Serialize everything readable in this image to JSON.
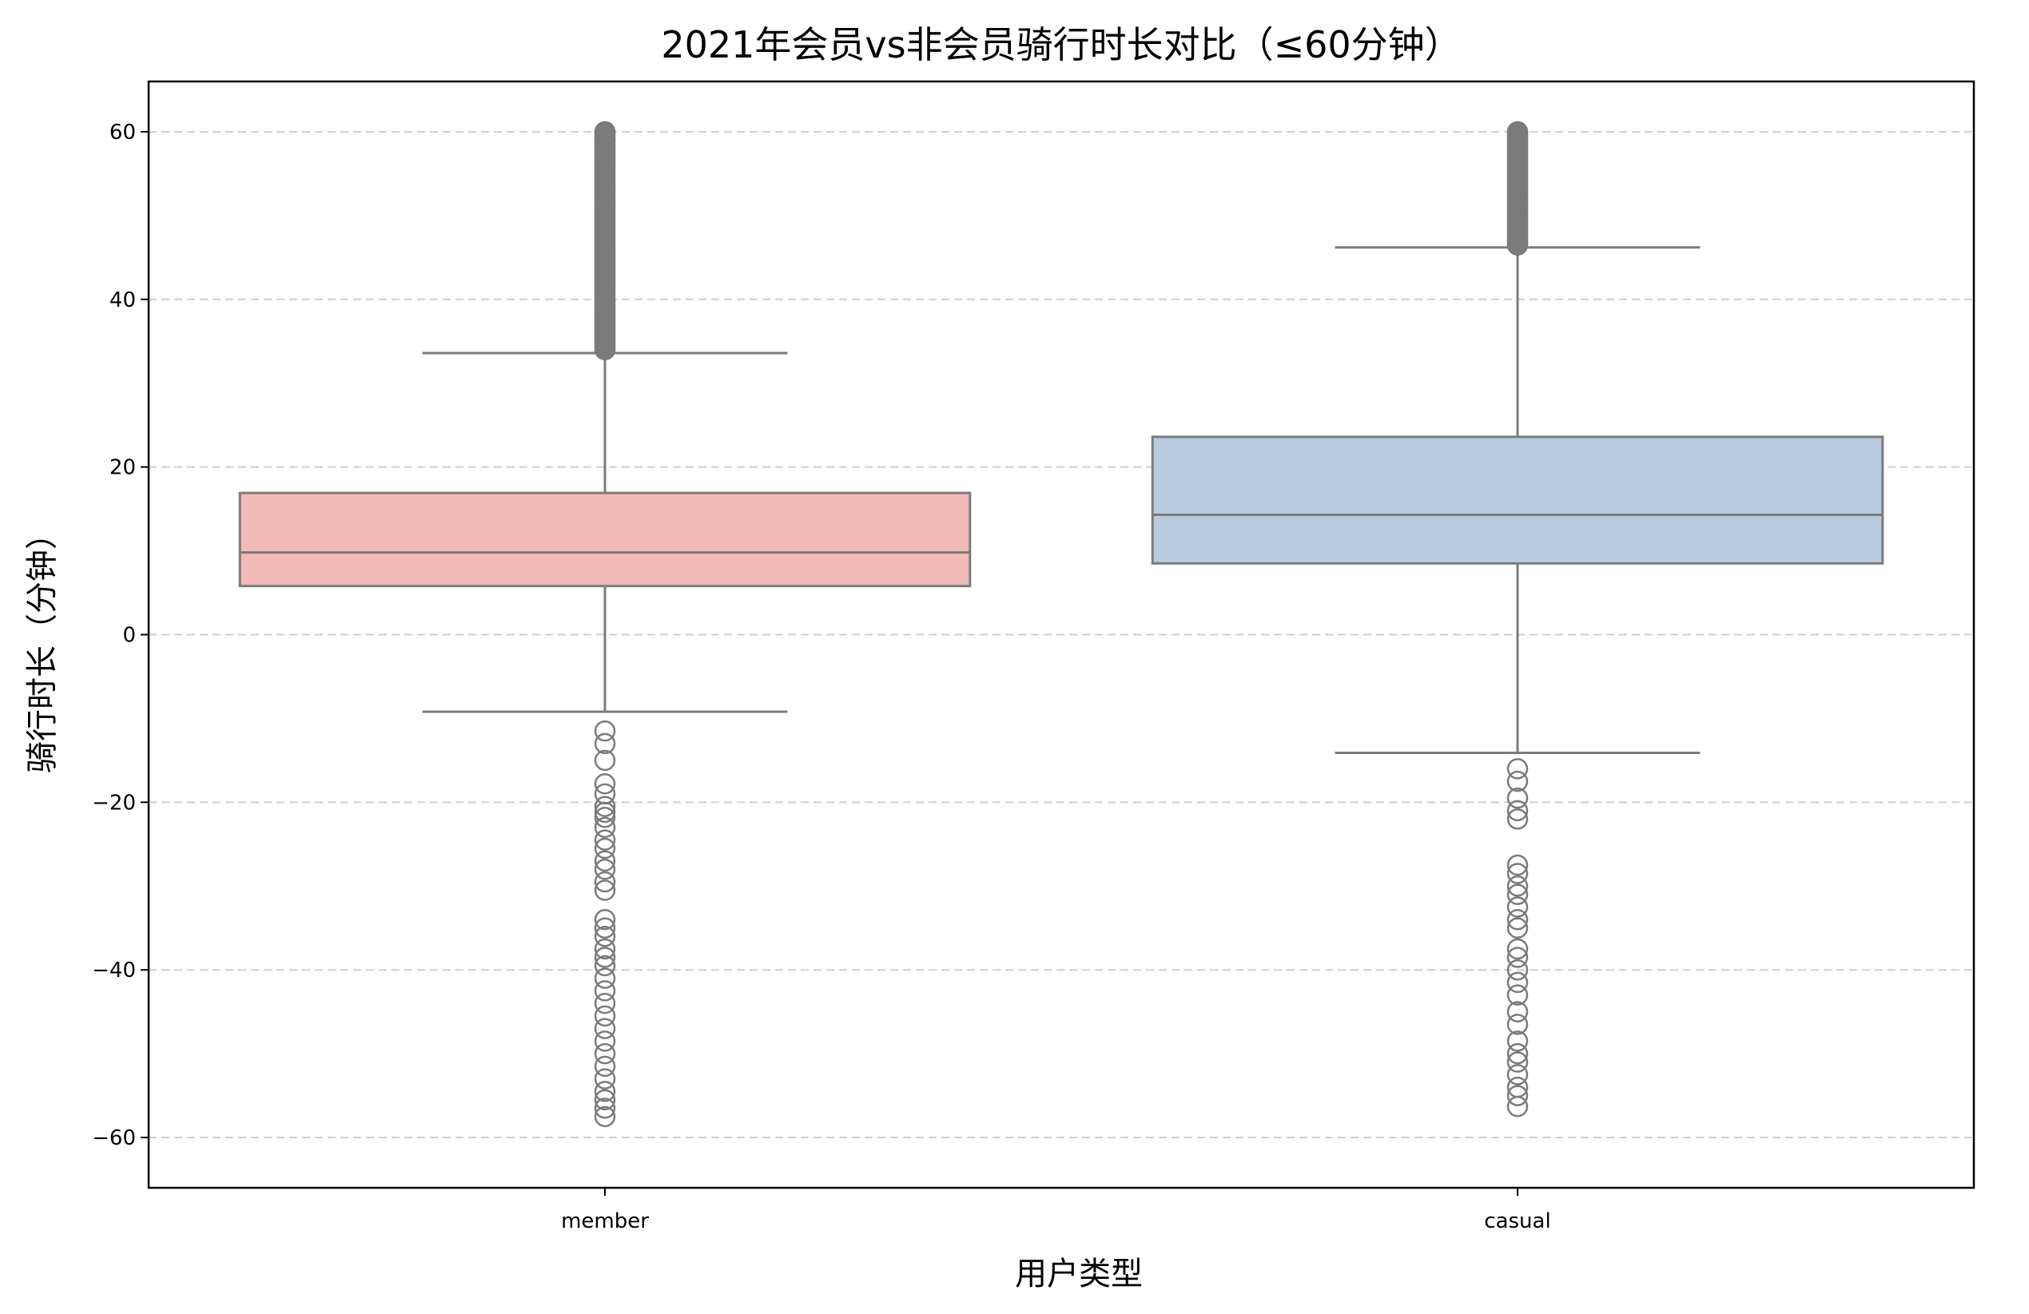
{
  "chart_data": {
    "type": "box",
    "title": "2021年会员vs非会员骑行时长对比（≤60分钟）",
    "xlabel": "用户类型",
    "ylabel": "骑行时长（分钟）",
    "ylim": [
      -66,
      66
    ],
    "yticks": [
      -60,
      -40,
      -20,
      0,
      20,
      40,
      60
    ],
    "grid": "y-dashed",
    "categories": [
      "member",
      "casual"
    ],
    "boxes": [
      {
        "category": "member",
        "color": "#f2bbb8",
        "whisker_low": -9.2,
        "q1": 5.8,
        "median": 9.8,
        "q3": 16.9,
        "whisker_high": 33.6,
        "outliers_low": [
          -11.5,
          -13.0,
          -15.0,
          -17.8,
          -19.0,
          -20.5,
          -21.2,
          -21.8,
          -23.0,
          -24.5,
          -25.5,
          -27.0,
          -28.0,
          -29.5,
          -30.5,
          -34.0,
          -35.0,
          -36.0,
          -37.5,
          -38.5,
          -39.5,
          -41.0,
          -42.5,
          -44.0,
          -45.5,
          -47.0,
          -48.5,
          -50.0,
          -51.5,
          -53.0,
          -54.5,
          -55.5,
          -56.5,
          -57.5
        ],
        "outliers_high": [
          34,
          35,
          36,
          37,
          38,
          39,
          40,
          41,
          42,
          43,
          44,
          45,
          46,
          47,
          48,
          49,
          50,
          51,
          52,
          53,
          54,
          55,
          56,
          57,
          58,
          59,
          60
        ]
      },
      {
        "category": "casual",
        "color": "#b9ccdf",
        "whisker_low": -14.1,
        "q1": 8.5,
        "median": 14.3,
        "q3": 23.6,
        "whisker_high": 46.2,
        "outliers_low": [
          -16.0,
          -17.5,
          -19.5,
          -21.0,
          -22.0,
          -27.5,
          -28.5,
          -30.0,
          -31.0,
          -32.5,
          -34.0,
          -35.0,
          -37.5,
          -38.5,
          -40.0,
          -41.5,
          -43.0,
          -45.0,
          -46.5,
          -48.5,
          -50.0,
          -51.0,
          -52.5,
          -54.0,
          -55.0,
          -56.3
        ],
        "outliers_high": [
          46.5,
          47,
          48,
          49,
          50,
          51,
          52,
          53,
          54,
          55,
          56,
          57,
          58,
          59,
          60
        ]
      }
    ]
  }
}
